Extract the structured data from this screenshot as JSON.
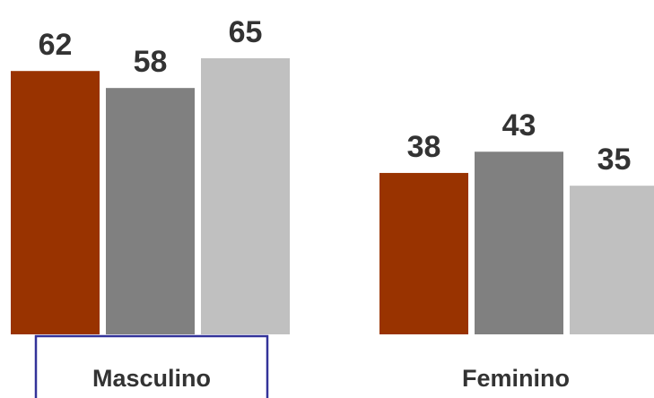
{
  "chart_data": {
    "type": "bar",
    "categories": [
      "Masculino",
      "Feminino"
    ],
    "series": [
      {
        "values": [
          62,
          38
        ],
        "color": "#993300"
      },
      {
        "values": [
          58,
          43
        ],
        "color": "#808080"
      },
      {
        "values": [
          65,
          35
        ],
        "color": "#c0c0c0"
      }
    ],
    "ylim": [
      0,
      65
    ],
    "grid": false,
    "legend": "none",
    "highlighted_category": "Masculino",
    "highlight_color": "#333399"
  }
}
